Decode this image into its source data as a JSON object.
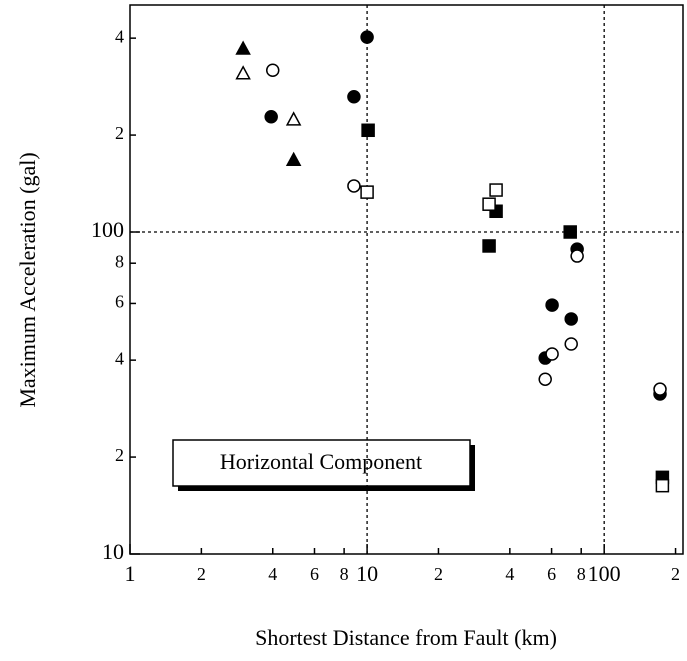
{
  "chart_data": {
    "type": "scatter",
    "log_x": true,
    "log_y": true,
    "xlabel": "Shortest Distance from Fault (km)",
    "ylabel": "Maximum Acceleration (gal)",
    "annotation": "Horizontal Component",
    "xlim": [
      1,
      215
    ],
    "ylim": [
      10,
      507
    ],
    "xticks": [
      1,
      {
        "value": 2,
        "label": "2"
      },
      {
        "value": 4,
        "label": "4"
      },
      {
        "value": 6,
        "label": "6"
      },
      {
        "value": 8,
        "label": "8"
      },
      10,
      {
        "value": 20,
        "label": "2"
      },
      {
        "value": 40,
        "label": "4"
      },
      {
        "value": 60,
        "label": "6"
      },
      {
        "value": 80,
        "label": "8"
      },
      100,
      {
        "value": 200,
        "label": "2"
      }
    ],
    "yticks": [
      10,
      {
        "value": 20,
        "label": "2"
      },
      {
        "value": 40,
        "label": "4"
      },
      {
        "value": 60,
        "label": "6"
      },
      {
        "value": 80,
        "label": "8"
      },
      100,
      {
        "value": 200,
        "label": "2"
      },
      {
        "value": 400,
        "label": "4"
      }
    ],
    "grid_x": [
      10,
      100
    ],
    "grid_y": [
      100
    ],
    "series": [
      {
        "marker": "triangle",
        "filled": true,
        "color": "#000000",
        "x": [
          3,
          4.9
        ],
        "values": [
          370,
          167
        ]
      },
      {
        "marker": "triangle",
        "filled": false,
        "color": "#000000",
        "x": [
          3,
          4.9
        ],
        "values": [
          310,
          223
        ]
      },
      {
        "marker": "circle",
        "filled": true,
        "color": "#000000",
        "x": [
          3.94,
          8.8,
          10,
          60.3,
          56.4,
          72.6,
          76.9,
          172
        ],
        "values": [
          228,
          263,
          403,
          59.3,
          40.6,
          53.7,
          88.5,
          31.4
        ]
      },
      {
        "marker": "circle",
        "filled": false,
        "color": "#000000",
        "x": [
          4,
          8.8,
          60.3,
          56.4,
          72.6,
          76.9,
          172
        ],
        "values": [
          318,
          139,
          41.8,
          34.9,
          44.9,
          84.2,
          32.5
        ]
      },
      {
        "marker": "square",
        "filled": true,
        "color": "#000000",
        "x": [
          10.1,
          35,
          32.7,
          71.9,
          176
        ],
        "values": [
          207,
          116,
          90.5,
          100,
          17.3
        ]
      },
      {
        "marker": "square",
        "filled": false,
        "color": "#000000",
        "x": [
          10,
          32.7,
          35,
          176
        ],
        "values": [
          133,
          122,
          135,
          16.3
        ]
      }
    ]
  }
}
